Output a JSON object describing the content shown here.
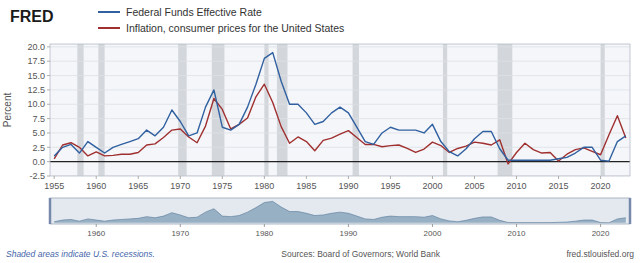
{
  "chart_data": [
    {
      "type": "line",
      "title": "FRED",
      "ylabel": "Percent",
      "x": [
        1955,
        1956,
        1957,
        1958,
        1959,
        1960,
        1961,
        1962,
        1963,
        1964,
        1965,
        1966,
        1967,
        1968,
        1969,
        1970,
        1971,
        1972,
        1973,
        1974,
        1975,
        1976,
        1977,
        1978,
        1979,
        1980,
        1981,
        1982,
        1983,
        1984,
        1985,
        1986,
        1987,
        1988,
        1989,
        1990,
        1991,
        1992,
        1993,
        1994,
        1995,
        1996,
        1997,
        1998,
        1999,
        2000,
        2001,
        2002,
        2003,
        2004,
        2005,
        2006,
        2007,
        2008,
        2009,
        2010,
        2011,
        2012,
        2013,
        2014,
        2015,
        2016,
        2017,
        2018,
        2019,
        2020,
        2021,
        2022,
        2023
      ],
      "series": [
        {
          "name": "Federal Funds Effective Rate",
          "color": "#3060a0",
          "values": [
            1.0,
            2.5,
            3.0,
            1.5,
            3.5,
            2.5,
            1.5,
            2.5,
            3.0,
            3.5,
            4.0,
            5.5,
            4.5,
            6.0,
            9.0,
            7.0,
            4.5,
            5.0,
            9.5,
            12.5,
            6.0,
            5.5,
            6.5,
            9.5,
            13.5,
            18.0,
            19.0,
            14.0,
            10.0,
            10.0,
            8.5,
            6.5,
            7.0,
            8.5,
            9.5,
            8.5,
            6.0,
            3.5,
            3.0,
            5.0,
            6.0,
            5.5,
            5.5,
            5.5,
            5.0,
            6.5,
            3.5,
            1.75,
            1.0,
            2.25,
            4.0,
            5.25,
            5.25,
            2.25,
            0.25,
            0.25,
            0.25,
            0.25,
            0.25,
            0.25,
            0.5,
            0.75,
            1.5,
            2.5,
            2.5,
            0.25,
            0.1,
            3.5,
            4.5
          ]
        },
        {
          "name": "Inflation, consumer prices for the United States",
          "color": "#a03030",
          "values": [
            0.5,
            2.9,
            3.3,
            2.5,
            1.0,
            1.7,
            1.0,
            1.1,
            1.3,
            1.3,
            1.6,
            2.9,
            3.1,
            4.2,
            5.5,
            5.7,
            4.3,
            3.3,
            6.2,
            11.0,
            9.1,
            5.7,
            6.5,
            7.6,
            11.3,
            13.5,
            10.3,
            6.1,
            3.2,
            4.3,
            3.5,
            1.9,
            3.7,
            4.1,
            4.8,
            5.4,
            4.2,
            3.0,
            3.0,
            2.6,
            2.8,
            2.9,
            2.3,
            1.6,
            2.2,
            3.4,
            2.8,
            1.6,
            2.3,
            2.7,
            3.4,
            3.2,
            2.9,
            3.8,
            -0.4,
            1.6,
            3.2,
            2.1,
            1.5,
            1.6,
            0.1,
            1.3,
            2.1,
            2.4,
            1.8,
            1.2,
            4.7,
            8.0,
            4.1
          ]
        }
      ],
      "xlim": [
        1954.5,
        2023.5
      ],
      "ylim": [
        -2.5,
        20.5
      ],
      "xticks": [
        1955,
        1960,
        1965,
        1970,
        1975,
        1980,
        1985,
        1990,
        1995,
        2000,
        2005,
        2010,
        2015,
        2020
      ],
      "yticks": [
        -2.5,
        {
          "value": 0,
          "label": "0.0"
        },
        2.5,
        {
          "value": 5,
          "label": "5.0"
        },
        7.5,
        {
          "value": 10,
          "label": "10.0"
        },
        12.5,
        {
          "value": 15,
          "label": "15.0"
        },
        17.5,
        {
          "value": 20,
          "label": "20.0"
        }
      ],
      "grid": true,
      "legend": "top",
      "recessions": [
        [
          1957.75,
          1958.5
        ],
        [
          1960.25,
          1961.0
        ],
        [
          1969.75,
          1970.75
        ],
        [
          1973.75,
          1975.25
        ],
        [
          1980.0,
          1980.5
        ],
        [
          1981.5,
          1982.75
        ],
        [
          1990.5,
          1991.25
        ],
        [
          2001.25,
          2001.75
        ],
        [
          2007.75,
          2009.5
        ],
        [
          2020.0,
          2020.5
        ]
      ],
      "annotations": [
        "Shaded areas indicate U.S. recessions.",
        "Sources: Board of Governors; World Bank",
        "fred.stlouisfed.org"
      ]
    },
    {
      "type": "area",
      "x": [
        1955,
        1956,
        1957,
        1958,
        1959,
        1960,
        1961,
        1962,
        1963,
        1964,
        1965,
        1966,
        1967,
        1968,
        1969,
        1970,
        1971,
        1972,
        1973,
        1974,
        1975,
        1976,
        1977,
        1978,
        1979,
        1980,
        1981,
        1982,
        1983,
        1984,
        1985,
        1986,
        1987,
        1988,
        1989,
        1990,
        1991,
        1992,
        1993,
        1994,
        1995,
        1996,
        1997,
        1998,
        1999,
        2000,
        2001,
        2002,
        2003,
        2004,
        2005,
        2006,
        2007,
        2008,
        2009,
        2010,
        2011,
        2012,
        2013,
        2014,
        2015,
        2016,
        2017,
        2018,
        2019,
        2020,
        2021,
        2022,
        2023
      ],
      "series": [
        {
          "color": "#8faabf",
          "values": [
            1.0,
            2.5,
            3.0,
            1.5,
            3.5,
            2.5,
            1.5,
            2.5,
            3.0,
            3.5,
            4.0,
            5.5,
            4.5,
            6.0,
            9.0,
            7.0,
            4.5,
            5.0,
            9.5,
            12.5,
            6.0,
            5.5,
            6.5,
            9.5,
            13.5,
            18.0,
            19.0,
            14.0,
            10.0,
            10.0,
            8.5,
            6.5,
            7.0,
            8.5,
            9.5,
            8.5,
            6.0,
            3.5,
            3.0,
            5.0,
            6.0,
            5.5,
            5.5,
            5.5,
            5.0,
            6.5,
            3.5,
            1.75,
            1.0,
            2.25,
            4.0,
            5.25,
            5.25,
            2.25,
            0.25,
            0.25,
            0.25,
            0.25,
            0.25,
            0.25,
            0.5,
            0.75,
            1.5,
            2.5,
            2.5,
            0.25,
            0.1,
            3.5,
            4.5
          ]
        }
      ],
      "xlim": [
        1954.5,
        2023.5
      ],
      "ylim": [
        -1,
        22
      ],
      "xticks": [
        1960,
        1970,
        1980,
        1990,
        2000,
        2010,
        2020
      ],
      "tick_labels": "x"
    }
  ]
}
